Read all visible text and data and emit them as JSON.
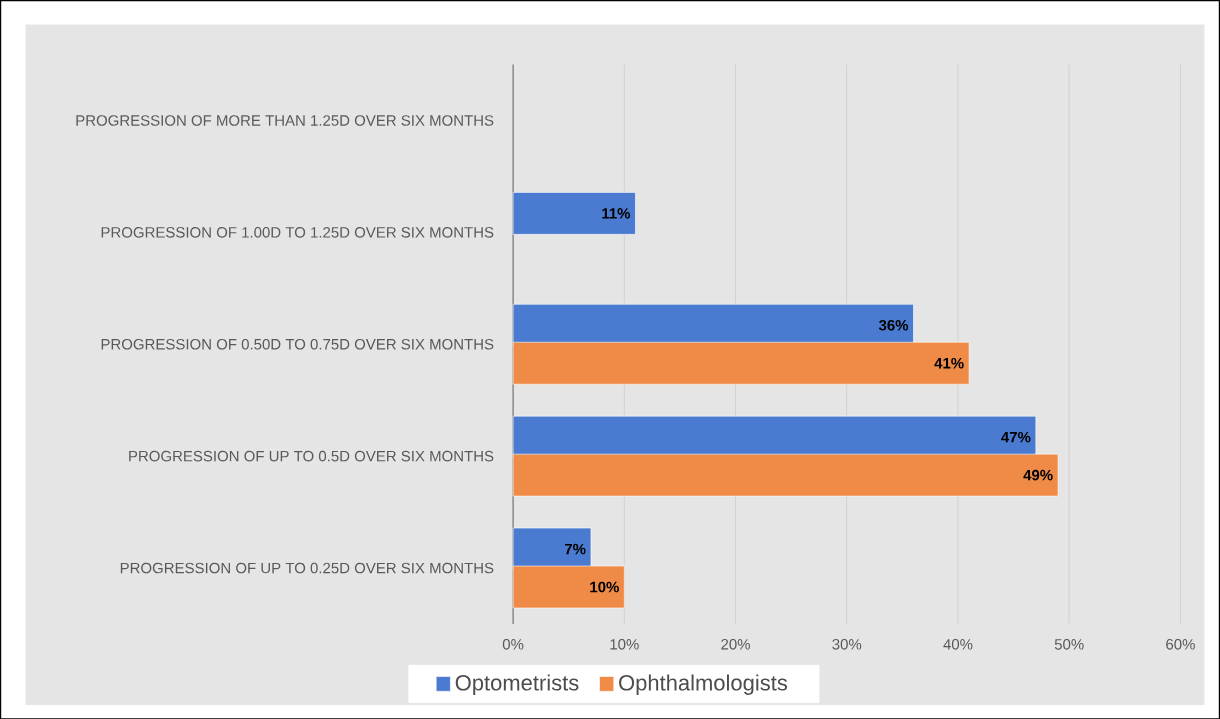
{
  "chart_data": {
    "type": "bar",
    "orientation": "horizontal",
    "categories": [
      "PROGRESSION OF MORE THAN 1.25D OVER SIX MONTHS",
      "PROGRESSION OF 1.00D TO 1.25D OVER SIX MONTHS",
      "PROGRESSION OF 0.50D TO 0.75D OVER SIX MONTHS",
      "PROGRESSION OF UP TO 0.5D OVER SIX MONTHS",
      "PROGRESSION OF UP TO 0.25D OVER SIX MONTHS"
    ],
    "series": [
      {
        "name": "Optometrists",
        "color": "#4a7bd0",
        "values": [
          null,
          11,
          36,
          47,
          7
        ],
        "value_labels": [
          null,
          "11%",
          "36%",
          "47%",
          "7%"
        ]
      },
      {
        "name": "Ophthalmologists",
        "color": "#ef8a47",
        "values": [
          null,
          null,
          41,
          49,
          10
        ],
        "value_labels": [
          null,
          null,
          "41%",
          "49%",
          "10%"
        ]
      }
    ],
    "xlim": [
      0,
      60
    ],
    "xticks": [
      {
        "value": 0,
        "label": "0%"
      },
      {
        "value": 10,
        "label": "10%"
      },
      {
        "value": 20,
        "label": "20%"
      },
      {
        "value": 30,
        "label": "30%"
      },
      {
        "value": 40,
        "label": "40%"
      },
      {
        "value": 50,
        "label": "50%"
      },
      {
        "value": 60,
        "label": "60%"
      }
    ],
    "grid": "x",
    "legend": "bottom"
  }
}
